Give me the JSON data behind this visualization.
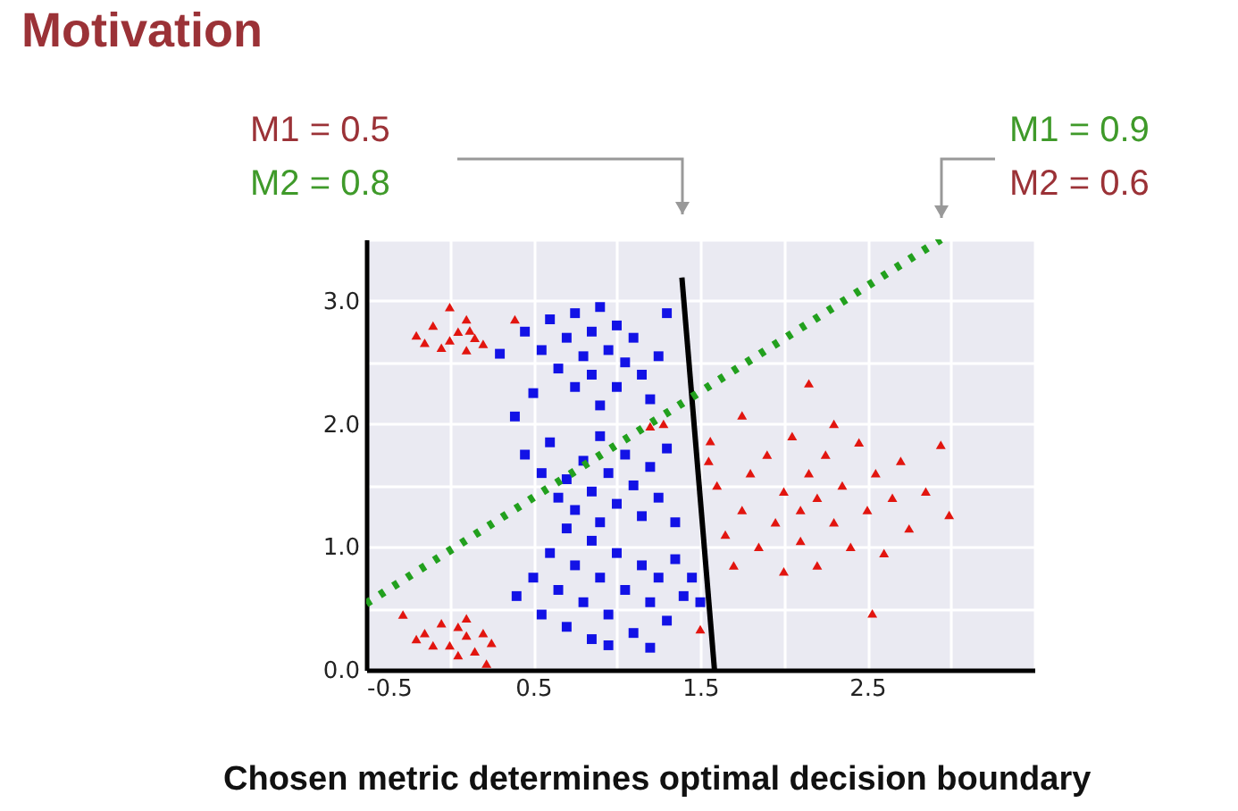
{
  "chart_data": {
    "type": "scatter",
    "title": "Motivation",
    "annotations": [
      "M1 = 0.5",
      "M2 = 0.8",
      "M1 = 0.9",
      "M2 = 0.6",
      "Chosen metric determines optimal decision boundary"
    ],
    "xlim": [
      -0.5,
      3.5
    ],
    "ylim": [
      0,
      3.5
    ],
    "xticks": [
      -0.5,
      {
        "value": 0,
        "label": null
      },
      0.5,
      {
        "value": 1,
        "label": null
      },
      1.5,
      {
        "value": 2,
        "label": null
      },
      2.5,
      {
        "value": 3,
        "label": null
      },
      {
        "value": 3.5,
        "label": null
      }
    ],
    "yticks": [
      {
        "value": 0,
        "label": "0.0"
      },
      {
        "value": 0.5,
        "label": null
      },
      {
        "value": 1,
        "label": "1.0"
      },
      {
        "value": 1.5,
        "label": null
      },
      {
        "value": 2,
        "label": "2.0"
      },
      {
        "value": 2.5,
        "label": null
      },
      {
        "value": 3,
        "label": "3.0"
      },
      {
        "value": 3.5,
        "label": null
      }
    ],
    "grid": true,
    "series": [
      {
        "marker": "triangle",
        "color": "#e2150f",
        "x": [
          -0.2,
          -0.1,
          0.0,
          0.05,
          0.1,
          0.15,
          -0.05,
          0.1,
          0.2,
          0.0,
          -0.15,
          0.12,
          0.39,
          -0.28,
          -0.15,
          -0.05,
          0.05,
          0.1,
          0.2,
          -0.1,
          0.0,
          0.15,
          0.25,
          0.05,
          0.22,
          -0.2,
          0.1,
          1.6,
          1.65,
          1.7,
          1.75,
          1.8,
          1.85,
          1.9,
          1.95,
          2.0,
          2.0,
          2.05,
          2.1,
          2.1,
          2.15,
          2.2,
          2.2,
          2.25,
          2.3,
          2.35,
          2.4,
          2.45,
          2.5,
          2.55,
          2.6,
          2.65,
          2.7,
          2.75,
          2.85,
          2.94,
          2.99,
          2.15,
          2.53,
          1.75,
          2.3,
          1.55,
          1.5,
          1.2,
          1.28,
          1.56
        ],
        "values": [
          2.72,
          2.8,
          2.95,
          2.75,
          2.85,
          2.7,
          2.62,
          2.6,
          2.65,
          2.68,
          2.66,
          2.76,
          2.85,
          0.45,
          0.3,
          0.38,
          0.35,
          0.28,
          0.3,
          0.2,
          0.2,
          0.15,
          0.22,
          0.12,
          0.05,
          0.25,
          0.42,
          1.5,
          1.1,
          0.85,
          1.3,
          1.6,
          1.0,
          1.75,
          1.2,
          1.45,
          0.8,
          1.9,
          1.3,
          1.05,
          1.6,
          1.4,
          0.85,
          1.75,
          1.2,
          1.5,
          1.0,
          1.85,
          1.3,
          1.6,
          0.95,
          1.4,
          1.7,
          1.15,
          1.45,
          1.83,
          1.26,
          2.33,
          0.46,
          2.07,
          2.0,
          1.7,
          0.33,
          1.98,
          2.0,
          1.86
        ]
      },
      {
        "marker": "square",
        "color": "#1212e6",
        "x": [
          0.45,
          0.55,
          0.6,
          0.65,
          0.7,
          0.75,
          0.75,
          0.8,
          0.85,
          0.85,
          0.9,
          0.95,
          1.0,
          1.0,
          1.05,
          1.1,
          1.15,
          1.2,
          1.3,
          0.5,
          0.39,
          0.9,
          1.25,
          0.3,
          0.45,
          0.55,
          0.6,
          0.65,
          0.7,
          0.75,
          0.8,
          0.85,
          0.9,
          0.9,
          0.95,
          1.0,
          1.05,
          1.1,
          1.15,
          1.2,
          1.25,
          1.3,
          1.35,
          0.7,
          0.4,
          0.5,
          0.55,
          0.6,
          0.65,
          0.7,
          0.75,
          0.8,
          0.85,
          0.85,
          0.9,
          0.95,
          1.0,
          1.05,
          1.1,
          1.15,
          1.2,
          1.25,
          1.3,
          1.35,
          1.4,
          1.45,
          1.5,
          1.2,
          0.95
        ],
        "values": [
          2.75,
          2.6,
          2.85,
          2.45,
          2.7,
          2.3,
          2.9,
          2.55,
          2.4,
          2.75,
          2.95,
          2.6,
          2.3,
          2.8,
          2.5,
          2.7,
          2.4,
          2.2,
          2.9,
          2.25,
          2.06,
          2.15,
          2.55,
          2.57,
          1.75,
          1.6,
          1.85,
          1.4,
          1.55,
          1.3,
          1.7,
          1.45,
          1.9,
          1.2,
          1.6,
          1.35,
          1.75,
          1.5,
          1.25,
          1.65,
          1.4,
          1.8,
          1.2,
          1.15,
          0.6,
          0.75,
          0.45,
          0.95,
          0.65,
          0.35,
          0.85,
          0.55,
          1.05,
          0.25,
          0.75,
          0.45,
          0.95,
          0.65,
          0.3,
          0.85,
          0.55,
          0.75,
          0.4,
          0.9,
          0.6,
          0.75,
          0.55,
          0.18,
          0.2
        ]
      },
      {
        "type": "line",
        "line_style": "solid",
        "color": "#000000",
        "x": [
          1.39,
          1.585
        ],
        "values": [
          3.19,
          0.0
        ]
      },
      {
        "type": "line",
        "line_style": "dotted",
        "color": "#22a01e",
        "x": [
          -0.5,
          2.94
        ],
        "values": [
          0.54,
          3.5
        ]
      }
    ]
  }
}
